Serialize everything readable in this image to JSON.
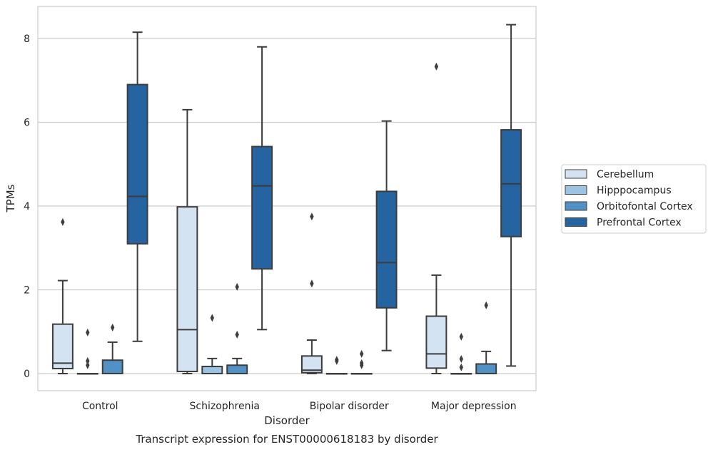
{
  "chart_data": {
    "type": "box",
    "title": "Transcript expression for ENST00000618183 by disorder",
    "xlabel": "Disorder",
    "ylabel": "TPMs",
    "ylim": [
      -0.4,
      8.75
    ],
    "yticks": [
      0,
      2,
      4,
      6,
      8
    ],
    "categories": [
      "Control",
      "Schizophrenia",
      "Bipolar disorder",
      "Major depression"
    ],
    "grid": "horizontal",
    "legend_position": "right",
    "series": [
      {
        "name": "Cerebellum",
        "color": "#d4e3f2",
        "boxes": [
          {
            "whislo": 0.0,
            "q1": 0.12,
            "med": 0.25,
            "q3": 1.18,
            "whishi": 2.22,
            "fliers": [
              3.62
            ]
          },
          {
            "whislo": 0.0,
            "q1": 0.05,
            "med": 1.05,
            "q3": 3.98,
            "whishi": 6.3,
            "fliers": []
          },
          {
            "whislo": 0.0,
            "q1": 0.02,
            "med": 0.08,
            "q3": 0.42,
            "whishi": 0.8,
            "fliers": [
              2.15,
              3.75
            ]
          },
          {
            "whislo": 0.0,
            "q1": 0.13,
            "med": 0.47,
            "q3": 1.37,
            "whishi": 2.35,
            "fliers": [
              7.33
            ]
          }
        ]
      },
      {
        "name": "Hipppocampus",
        "color": "#9cc3e1",
        "boxes": [
          {
            "whislo": 0.0,
            "q1": 0.0,
            "med": 0.0,
            "q3": 0.0,
            "whishi": 0.0,
            "fliers": [
              0.2,
              0.3,
              0.98
            ]
          },
          {
            "whislo": 0.0,
            "q1": 0.0,
            "med": 0.0,
            "q3": 0.17,
            "whishi": 0.36,
            "fliers": [
              1.33
            ]
          },
          {
            "whislo": 0.0,
            "q1": 0.0,
            "med": 0.0,
            "q3": 0.0,
            "whishi": 0.0,
            "fliers": [
              0.3,
              0.33
            ]
          },
          {
            "whislo": 0.0,
            "q1": 0.0,
            "med": 0.0,
            "q3": 0.0,
            "whishi": 0.0,
            "fliers": [
              0.15,
              0.35,
              0.88
            ]
          }
        ]
      },
      {
        "name": "Orbitofontal Cortex",
        "color": "#5191c5",
        "boxes": [
          {
            "whislo": 0.0,
            "q1": 0.0,
            "med": 0.0,
            "q3": 0.32,
            "whishi": 0.75,
            "fliers": [
              1.1
            ]
          },
          {
            "whislo": 0.0,
            "q1": 0.0,
            "med": 0.0,
            "q3": 0.2,
            "whishi": 0.36,
            "fliers": [
              0.93,
              2.07
            ]
          },
          {
            "whislo": 0.0,
            "q1": 0.0,
            "med": 0.0,
            "q3": 0.0,
            "whishi": 0.0,
            "fliers": [
              0.2,
              0.25,
              0.47
            ]
          },
          {
            "whislo": 0.0,
            "q1": 0.0,
            "med": 0.0,
            "q3": 0.23,
            "whishi": 0.53,
            "fliers": [
              1.63
            ]
          }
        ]
      },
      {
        "name": "Prefrontal Cortex",
        "color": "#2563a1",
        "boxes": [
          {
            "whislo": 0.77,
            "q1": 3.1,
            "med": 4.23,
            "q3": 6.9,
            "whishi": 8.15,
            "fliers": []
          },
          {
            "whislo": 1.05,
            "q1": 2.5,
            "med": 4.48,
            "q3": 5.42,
            "whishi": 7.8,
            "fliers": []
          },
          {
            "whislo": 0.55,
            "q1": 1.57,
            "med": 2.65,
            "q3": 4.35,
            "whishi": 6.03,
            "fliers": []
          },
          {
            "whislo": 0.18,
            "q1": 3.27,
            "med": 4.53,
            "q3": 5.82,
            "whishi": 8.33,
            "fliers": []
          }
        ]
      }
    ]
  }
}
